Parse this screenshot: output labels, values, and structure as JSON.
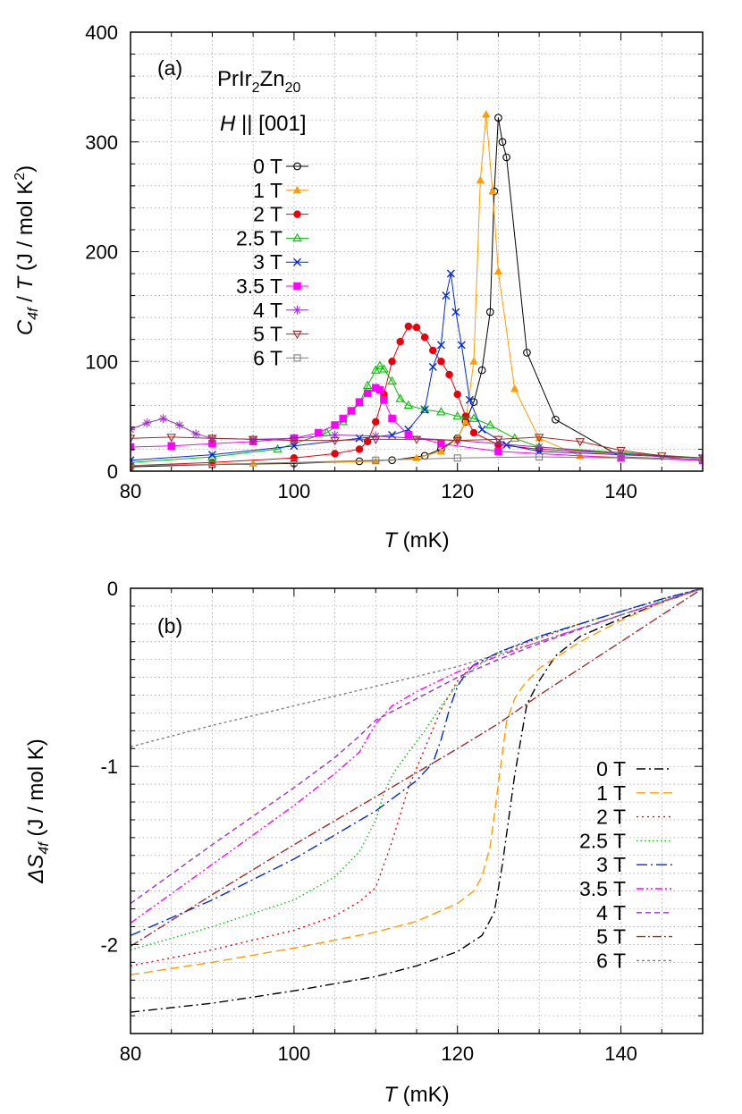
{
  "panel_labels": {
    "a": "(a)",
    "b": "(b)"
  },
  "compound": {
    "base": "PrIr",
    "sub1": "2",
    "mid": "Zn",
    "sub2": "20"
  },
  "field_direction": {
    "italic": "H",
    "rest": " || [001]"
  },
  "axis_text": {
    "top_ylabel": {
      "main": "C",
      "sub": "4f",
      "slash": " / ",
      "t": "T",
      "units": " (J / mol K",
      "sup": "2",
      "close": ")"
    },
    "top_xlabel": {
      "t": "T",
      "units": " (mK)"
    },
    "bottom_ylabel": {
      "delta": "ΔS",
      "sub": "4f",
      "units": " (J / mol K)"
    },
    "bottom_xlabel": {
      "t": "T",
      "units": " (mK)"
    }
  },
  "colors": {
    "0T": "#000000",
    "1T": "#ff9c00",
    "2T": "#e8000b",
    "2.5T": "#00c000",
    "3T": "#0028dc",
    "3.5T": "#ff00ff",
    "4T": "#9b2fcc",
    "5T": "#a52a2a",
    "6T": "#808080"
  },
  "chart_data": [
    {
      "type": "line",
      "panel": "(a)",
      "xlabel": "T (mK)",
      "ylabel": "C4f / T (J / mol K2)",
      "xlim": [
        80,
        150
      ],
      "ylim": [
        0,
        400
      ],
      "xticks": [
        "80",
        "100",
        "120",
        "140"
      ],
      "yticks": [
        "0",
        "100",
        "200",
        "300",
        "400"
      ],
      "legend_placement": "top-left",
      "series": [
        {
          "name": "0 T",
          "key": "0T",
          "marker": "circle",
          "x": [
            80,
            90,
            100,
            108,
            112,
            116,
            118,
            120,
            121,
            122,
            123,
            124,
            124.5,
            125,
            125.5,
            126,
            128.5,
            132,
            140,
            150
          ],
          "y": [
            4,
            6,
            7,
            9,
            10,
            14,
            20,
            30,
            45,
            63,
            92,
            145,
            255,
            322,
            300,
            286,
            108,
            47,
            13,
            10
          ]
        },
        {
          "name": "1 T",
          "key": "1T",
          "marker": "triangle",
          "x": [
            80,
            95,
            110,
            115,
            118,
            120,
            121,
            122,
            122.8,
            123.5,
            124.3,
            125,
            127,
            130,
            135,
            150
          ],
          "y": [
            5,
            7,
            9,
            12,
            18,
            30,
            45,
            100,
            265,
            325,
            255,
            182,
            75,
            30,
            14,
            10
          ]
        },
        {
          "name": "2 T",
          "key": "2T",
          "marker": "disc",
          "x": [
            80,
            90,
            100,
            105,
            108,
            109,
            110,
            111,
            112,
            113,
            114,
            115,
            116,
            117,
            118,
            119,
            120,
            121,
            122,
            125,
            130,
            150
          ],
          "y": [
            5,
            8,
            12,
            16,
            20,
            27,
            45,
            70,
            100,
            118,
            132,
            131,
            122,
            110,
            100,
            88,
            70,
            50,
            35,
            24,
            20,
            12
          ]
        },
        {
          "name": "2.5 T",
          "key": "2.5T",
          "marker": "triangle-open",
          "x": [
            80,
            90,
            98,
            104,
            106,
            108,
            109,
            110,
            110.5,
            111,
            112,
            113,
            114,
            116,
            118,
            120,
            122,
            124,
            127,
            130,
            150
          ],
          "y": [
            8,
            13,
            20,
            35,
            45,
            62,
            78,
            92,
            96,
            93,
            82,
            66,
            60,
            56,
            54,
            50,
            48,
            42,
            30,
            22,
            12
          ]
        },
        {
          "name": "3 T",
          "key": "3T",
          "marker": "cross",
          "x": [
            80,
            90,
            100,
            108,
            112,
            114,
            116,
            117,
            118,
            118.6,
            119.2,
            119.8,
            120.5,
            121.5,
            123,
            126,
            130,
            150
          ],
          "y": [
            10,
            15,
            23,
            30,
            33,
            38,
            56,
            95,
            115,
            160,
            180,
            145,
            115,
            65,
            38,
            24,
            18,
            12
          ]
        },
        {
          "name": "3.5 T",
          "key": "3.5T",
          "marker": "square",
          "x": [
            80,
            85,
            90,
            95,
            100,
            103,
            105,
            106,
            107,
            108,
            109,
            110,
            110.5,
            111,
            112,
            114,
            118,
            125,
            140,
            150
          ],
          "y": [
            22,
            23,
            25,
            27,
            30,
            35,
            42,
            48,
            55,
            63,
            71,
            76,
            74,
            65,
            48,
            33,
            25,
            18,
            12,
            10
          ]
        },
        {
          "name": "4 T",
          "key": "4T",
          "marker": "star",
          "x": [
            80,
            82,
            84,
            86,
            88,
            90,
            95,
            100,
            105,
            110,
            120,
            130,
            140,
            150
          ],
          "y": [
            38,
            44,
            48,
            42,
            34,
            30,
            29,
            30,
            33,
            32,
            28,
            22,
            16,
            10
          ]
        },
        {
          "name": "5 T",
          "key": "5T",
          "marker": "triangle-down",
          "x": [
            80,
            85,
            90,
            95,
            100,
            105,
            110,
            115,
            120,
            125,
            130,
            135,
            140,
            145,
            150
          ],
          "y": [
            30,
            31,
            30,
            29,
            28,
            28,
            29,
            29,
            28,
            29,
            31,
            27,
            19,
            14,
            12
          ]
        },
        {
          "name": "6 T",
          "key": "6T",
          "marker": "square-open",
          "x": [
            80,
            90,
            100,
            110,
            120,
            130,
            140,
            150
          ],
          "y": [
            5,
            6,
            8,
            10,
            12,
            13,
            12,
            11
          ]
        }
      ]
    },
    {
      "type": "line",
      "panel": "(b)",
      "xlabel": "T (mK)",
      "ylabel": "ΔS4f (J / mol K)",
      "xlim": [
        80,
        150
      ],
      "ylim": [
        -2.5,
        0
      ],
      "xticks": [
        "80",
        "100",
        "120",
        "140"
      ],
      "yticks": [
        "-2",
        "-1",
        "0"
      ],
      "legend_placement": "right",
      "series": [
        {
          "name": "0 T",
          "key": "0T",
          "dash": "10,4,2,4",
          "x": [
            80,
            90,
            100,
            110,
            115,
            120,
            123,
            124.5,
            125.5,
            127,
            128.5,
            130,
            132,
            135,
            140,
            145,
            150
          ],
          "y": [
            -2.38,
            -2.33,
            -2.26,
            -2.18,
            -2.12,
            -2.04,
            -1.95,
            -1.82,
            -1.55,
            -1.05,
            -0.65,
            -0.52,
            -0.38,
            -0.27,
            -0.17,
            -0.08,
            0
          ]
        },
        {
          "name": "1 T",
          "key": "1T",
          "dash": "10,5",
          "x": [
            80,
            90,
            100,
            110,
            115,
            120,
            122,
            123,
            124,
            125,
            126,
            127,
            128,
            130,
            135,
            140,
            145,
            150
          ],
          "y": [
            -2.17,
            -2.1,
            -2.02,
            -1.93,
            -1.87,
            -1.77,
            -1.7,
            -1.62,
            -1.45,
            -1.1,
            -0.75,
            -0.62,
            -0.55,
            -0.45,
            -0.3,
            -0.18,
            -0.08,
            0
          ]
        },
        {
          "name": "2 T",
          "key": "2T",
          "dash": "2,4",
          "x": [
            80,
            90,
            100,
            105,
            108,
            110,
            112,
            114,
            116,
            118,
            120,
            122,
            125,
            130,
            135,
            140,
            145,
            150
          ],
          "y": [
            -2.12,
            -2.03,
            -1.92,
            -1.84,
            -1.76,
            -1.68,
            -1.42,
            -1.12,
            -0.9,
            -0.68,
            -0.52,
            -0.43,
            -0.36,
            -0.28,
            -0.2,
            -0.13,
            -0.06,
            0
          ]
        },
        {
          "name": "2.5 T",
          "key": "2.5T",
          "dash": "1.5,3",
          "x": [
            80,
            90,
            100,
            105,
            108,
            110,
            111,
            112,
            114,
            116,
            118,
            120,
            122,
            125,
            130,
            140,
            150
          ],
          "y": [
            -2.03,
            -1.9,
            -1.75,
            -1.62,
            -1.48,
            -1.3,
            -1.15,
            -1.05,
            -0.92,
            -0.8,
            -0.66,
            -0.54,
            -0.45,
            -0.36,
            -0.27,
            -0.13,
            0
          ]
        },
        {
          "name": "3 T",
          "key": "3T",
          "dash": "12,4,2,4",
          "x": [
            80,
            90,
            100,
            110,
            115,
            117,
            118,
            119,
            120,
            121,
            122,
            125,
            130,
            135,
            140,
            145,
            150
          ],
          "y": [
            -1.95,
            -1.75,
            -1.52,
            -1.25,
            -1.08,
            -0.98,
            -0.85,
            -0.68,
            -0.55,
            -0.48,
            -0.43,
            -0.36,
            -0.27,
            -0.2,
            -0.13,
            -0.06,
            0
          ]
        },
        {
          "name": "3.5 T",
          "key": "3.5T",
          "dash": "8,3,2,3,2,3",
          "x": [
            80,
            90,
            100,
            105,
            108,
            110,
            112,
            115,
            120,
            125,
            130,
            140,
            150
          ],
          "y": [
            -1.88,
            -1.55,
            -1.22,
            -1.04,
            -0.92,
            -0.76,
            -0.66,
            -0.58,
            -0.47,
            -0.38,
            -0.3,
            -0.15,
            0
          ]
        },
        {
          "name": "4 T",
          "key": "4T",
          "dash": "6,4",
          "x": [
            80,
            90,
            100,
            105,
            108,
            110,
            115,
            120,
            125,
            130,
            140,
            150
          ],
          "y": [
            -1.77,
            -1.44,
            -1.12,
            -0.95,
            -0.83,
            -0.74,
            -0.62,
            -0.5,
            -0.4,
            -0.31,
            -0.15,
            0
          ]
        },
        {
          "name": "5 T",
          "key": "5T",
          "dash": "10,3,2,3",
          "x": [
            80,
            90,
            100,
            110,
            120,
            125,
            130,
            135,
            140,
            145,
            150
          ],
          "y": [
            -2.01,
            -1.72,
            -1.44,
            -1.17,
            -0.9,
            -0.76,
            -0.6,
            -0.45,
            -0.3,
            -0.15,
            0
          ]
        },
        {
          "name": "6 T",
          "key": "6T",
          "dash": "3,3",
          "x": [
            80,
            90,
            100,
            110,
            120,
            130,
            140,
            150
          ],
          "y": [
            -0.89,
            -0.77,
            -0.66,
            -0.55,
            -0.44,
            -0.3,
            -0.15,
            0
          ]
        }
      ]
    }
  ]
}
